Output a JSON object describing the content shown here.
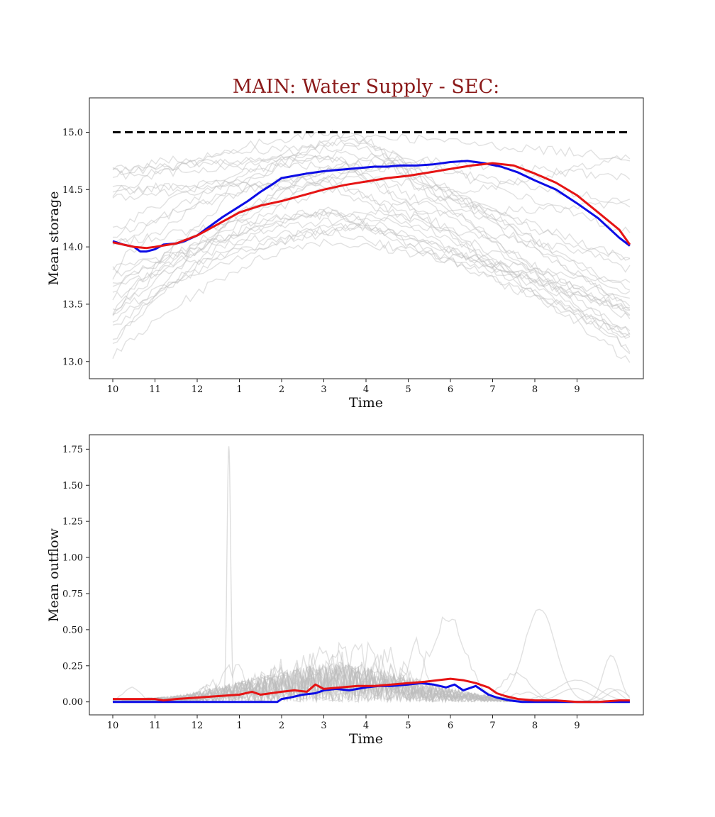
{
  "title": "MAIN: Water Supply - SEC:",
  "colors": {
    "title": "#8b1a1a",
    "blue": "#0d0de6",
    "red": "#e61414",
    "gray": "#bdbdbd",
    "dashed": "#000000"
  },
  "x_ticks": [
    "10",
    "11",
    "12",
    "1",
    "2",
    "3",
    "4",
    "5",
    "6",
    "7",
    "8",
    "9"
  ],
  "chart_data": [
    {
      "type": "line",
      "xlabel": "Time",
      "ylabel": "Mean storage",
      "ylim": [
        12.85,
        15.3
      ],
      "yticks": [
        "13.0",
        "13.5",
        "14.0",
        "14.5",
        "15.0"
      ],
      "ytick_values": [
        13.0,
        13.5,
        14.0,
        14.5,
        15.0
      ],
      "x_range": [
        0,
        12.25
      ],
      "grid": false,
      "reference_line": {
        "value": 15.0,
        "style": "dashed",
        "color": "#000000"
      },
      "series": [
        {
          "color": "#0d0de6",
          "x": [
            0,
            0.25,
            0.5,
            0.65,
            0.8,
            1.0,
            1.2,
            1.5,
            1.7,
            2.0,
            2.3,
            2.6,
            2.9,
            3.2,
            3.5,
            3.8,
            4.0,
            4.3,
            4.6,
            5.0,
            5.3,
            5.6,
            5.9,
            6.2,
            6.5,
            6.8,
            7.2,
            7.6,
            8.0,
            8.4,
            8.8,
            9.2,
            9.6,
            10.0,
            10.5,
            11.0,
            11.5,
            12.0,
            12.25
          ],
          "values": [
            14.05,
            14.02,
            14.0,
            13.96,
            13.96,
            13.98,
            14.02,
            14.03,
            14.05,
            14.1,
            14.18,
            14.26,
            14.33,
            14.4,
            14.48,
            14.55,
            14.6,
            14.62,
            14.64,
            14.66,
            14.67,
            14.68,
            14.69,
            14.7,
            14.7,
            14.71,
            14.71,
            14.72,
            14.74,
            14.75,
            14.73,
            14.7,
            14.65,
            14.58,
            14.5,
            14.38,
            14.25,
            14.08,
            14.01
          ]
        },
        {
          "color": "#e61414",
          "x": [
            0,
            0.5,
            0.8,
            1.0,
            1.5,
            2.0,
            2.5,
            3.0,
            3.5,
            4.0,
            4.5,
            5.0,
            5.5,
            6.0,
            6.5,
            7.0,
            7.5,
            8.0,
            8.5,
            9.0,
            9.5,
            10.0,
            10.5,
            11.0,
            11.5,
            12.0,
            12.25
          ],
          "values": [
            14.04,
            14.0,
            13.99,
            14.0,
            14.03,
            14.1,
            14.2,
            14.3,
            14.36,
            14.4,
            14.45,
            14.5,
            14.54,
            14.57,
            14.6,
            14.62,
            14.65,
            14.68,
            14.71,
            14.73,
            14.71,
            14.64,
            14.56,
            14.45,
            14.3,
            14.15,
            14.02
          ]
        }
      ]
    },
    {
      "type": "line",
      "xlabel": "Time",
      "ylabel": "Mean outflow",
      "ylim": [
        -0.09,
        1.85
      ],
      "yticks": [
        "0.00",
        "0.25",
        "0.50",
        "0.75",
        "1.00",
        "1.25",
        "1.50",
        "1.75"
      ],
      "ytick_values": [
        0,
        0.25,
        0.5,
        0.75,
        1.0,
        1.25,
        1.5,
        1.75
      ],
      "x_range": [
        0,
        12.25
      ],
      "grid": false,
      "series": [
        {
          "color": "#0d0de6",
          "x": [
            0,
            0.5,
            1.0,
            1.5,
            2.0,
            2.5,
            3.0,
            3.5,
            3.9,
            4.0,
            4.2,
            4.5,
            4.8,
            5.0,
            5.3,
            5.6,
            6.0,
            6.3,
            6.6,
            7.0,
            7.3,
            7.6,
            7.9,
            8.1,
            8.3,
            8.6,
            8.9,
            9.1,
            9.4,
            9.7,
            10.0,
            10.5,
            11.0,
            11.5,
            12.0,
            12.25
          ],
          "values": [
            0.0,
            0.0,
            0.0,
            0.0,
            0.0,
            0.0,
            0.0,
            0.0,
            0.0,
            0.02,
            0.03,
            0.05,
            0.06,
            0.08,
            0.09,
            0.08,
            0.1,
            0.11,
            0.11,
            0.12,
            0.13,
            0.12,
            0.1,
            0.12,
            0.08,
            0.11,
            0.05,
            0.03,
            0.01,
            0.0,
            0.0,
            0.0,
            0.0,
            0.0,
            0.0,
            0.0
          ]
        },
        {
          "color": "#e61414",
          "x": [
            0,
            0.5,
            1.0,
            1.2,
            1.5,
            2.0,
            2.5,
            3.0,
            3.3,
            3.5,
            4.0,
            4.3,
            4.6,
            4.8,
            5.0,
            5.4,
            5.8,
            6.2,
            6.6,
            7.0,
            7.4,
            7.7,
            8.0,
            8.3,
            8.6,
            8.9,
            9.1,
            9.3,
            9.6,
            10.0,
            10.5,
            11.0,
            11.5,
            12.0,
            12.25
          ],
          "values": [
            0.02,
            0.02,
            0.02,
            0.01,
            0.02,
            0.03,
            0.04,
            0.05,
            0.07,
            0.05,
            0.07,
            0.08,
            0.07,
            0.12,
            0.09,
            0.1,
            0.11,
            0.11,
            0.12,
            0.13,
            0.14,
            0.15,
            0.16,
            0.15,
            0.13,
            0.1,
            0.06,
            0.04,
            0.02,
            0.01,
            0.01,
            0.0,
            0.0,
            0.01,
            0.01
          ]
        }
      ]
    }
  ]
}
